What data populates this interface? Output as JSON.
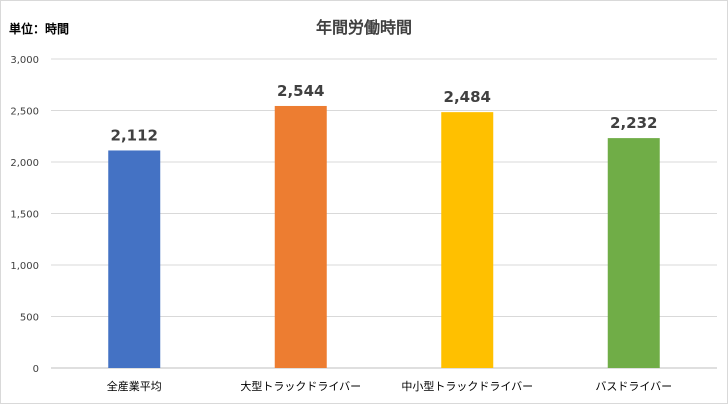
{
  "chart_data": {
    "type": "bar",
    "title": "年間労働時間",
    "unit_label": "単位：時間",
    "categories": [
      "全産業平均",
      "大型トラックドライバー",
      "中小型トラックドライバー",
      "バスドライバー"
    ],
    "values": [
      2112,
      2544,
      2484,
      2232
    ],
    "value_labels": [
      "2,112",
      "2,544",
      "2,484",
      "2,232"
    ],
    "colors": [
      "#4472c4",
      "#ed7d31",
      "#ffc000",
      "#70ad47"
    ],
    "ylim": [
      0,
      3000
    ],
    "yticks": [
      0,
      500,
      1000,
      1500,
      2000,
      2500,
      3000
    ],
    "ytick_labels": [
      "0",
      "500",
      "1,000",
      "1,500",
      "2,000",
      "2,500",
      "3,000"
    ],
    "grid": true,
    "legend": "none"
  }
}
